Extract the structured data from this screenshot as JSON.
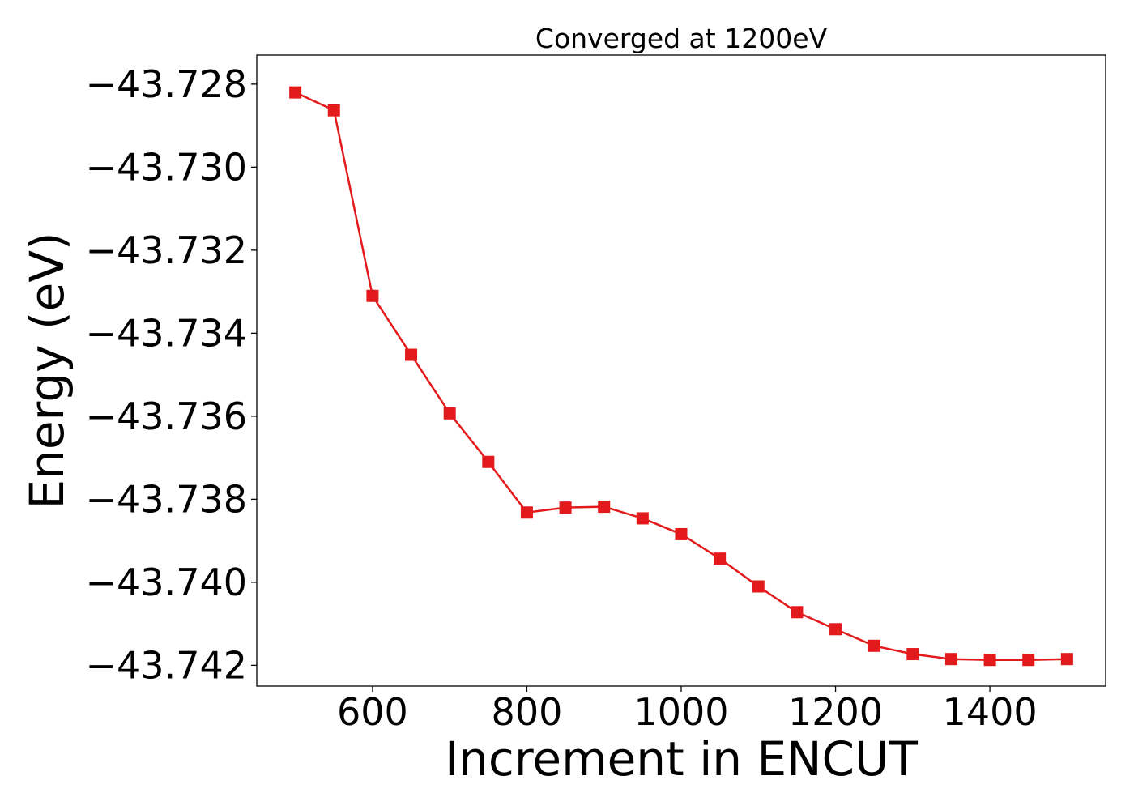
{
  "chart_data": {
    "type": "line",
    "title": "Converged at 1200eV",
    "xlabel": "Increment in ENCUT",
    "ylabel": "Energy (eV)",
    "xlim": [
      450,
      1550
    ],
    "ylim": [
      -43.7425,
      -43.7273
    ],
    "xticks": [
      600,
      800,
      1000,
      1200,
      1400
    ],
    "yticks": [
      -43.728,
      -43.73,
      -43.732,
      -43.734,
      -43.736,
      -43.738,
      -43.74,
      -43.742
    ],
    "ytick_labels": [
      "−43.728",
      "−43.730",
      "−43.732",
      "−43.734",
      "−43.736",
      "−43.738",
      "−43.740",
      "−43.742"
    ],
    "grid": false,
    "series": [
      {
        "color": "#e31a1c",
        "marker": "square",
        "x": [
          500,
          550,
          600,
          650,
          700,
          750,
          800,
          850,
          900,
          950,
          1000,
          1050,
          1100,
          1150,
          1200,
          1250,
          1300,
          1350,
          1400,
          1450,
          1500
        ],
        "y": [
          -43.7282,
          -43.72863,
          -43.7331,
          -43.73452,
          -43.73593,
          -43.7371,
          -43.73832,
          -43.7382,
          -43.73818,
          -43.73846,
          -43.73884,
          -43.73943,
          -43.7401,
          -43.74072,
          -43.74113,
          -43.74153,
          -43.74173,
          -43.74185,
          -43.74187,
          -43.74187,
          -43.74185
        ]
      }
    ]
  }
}
